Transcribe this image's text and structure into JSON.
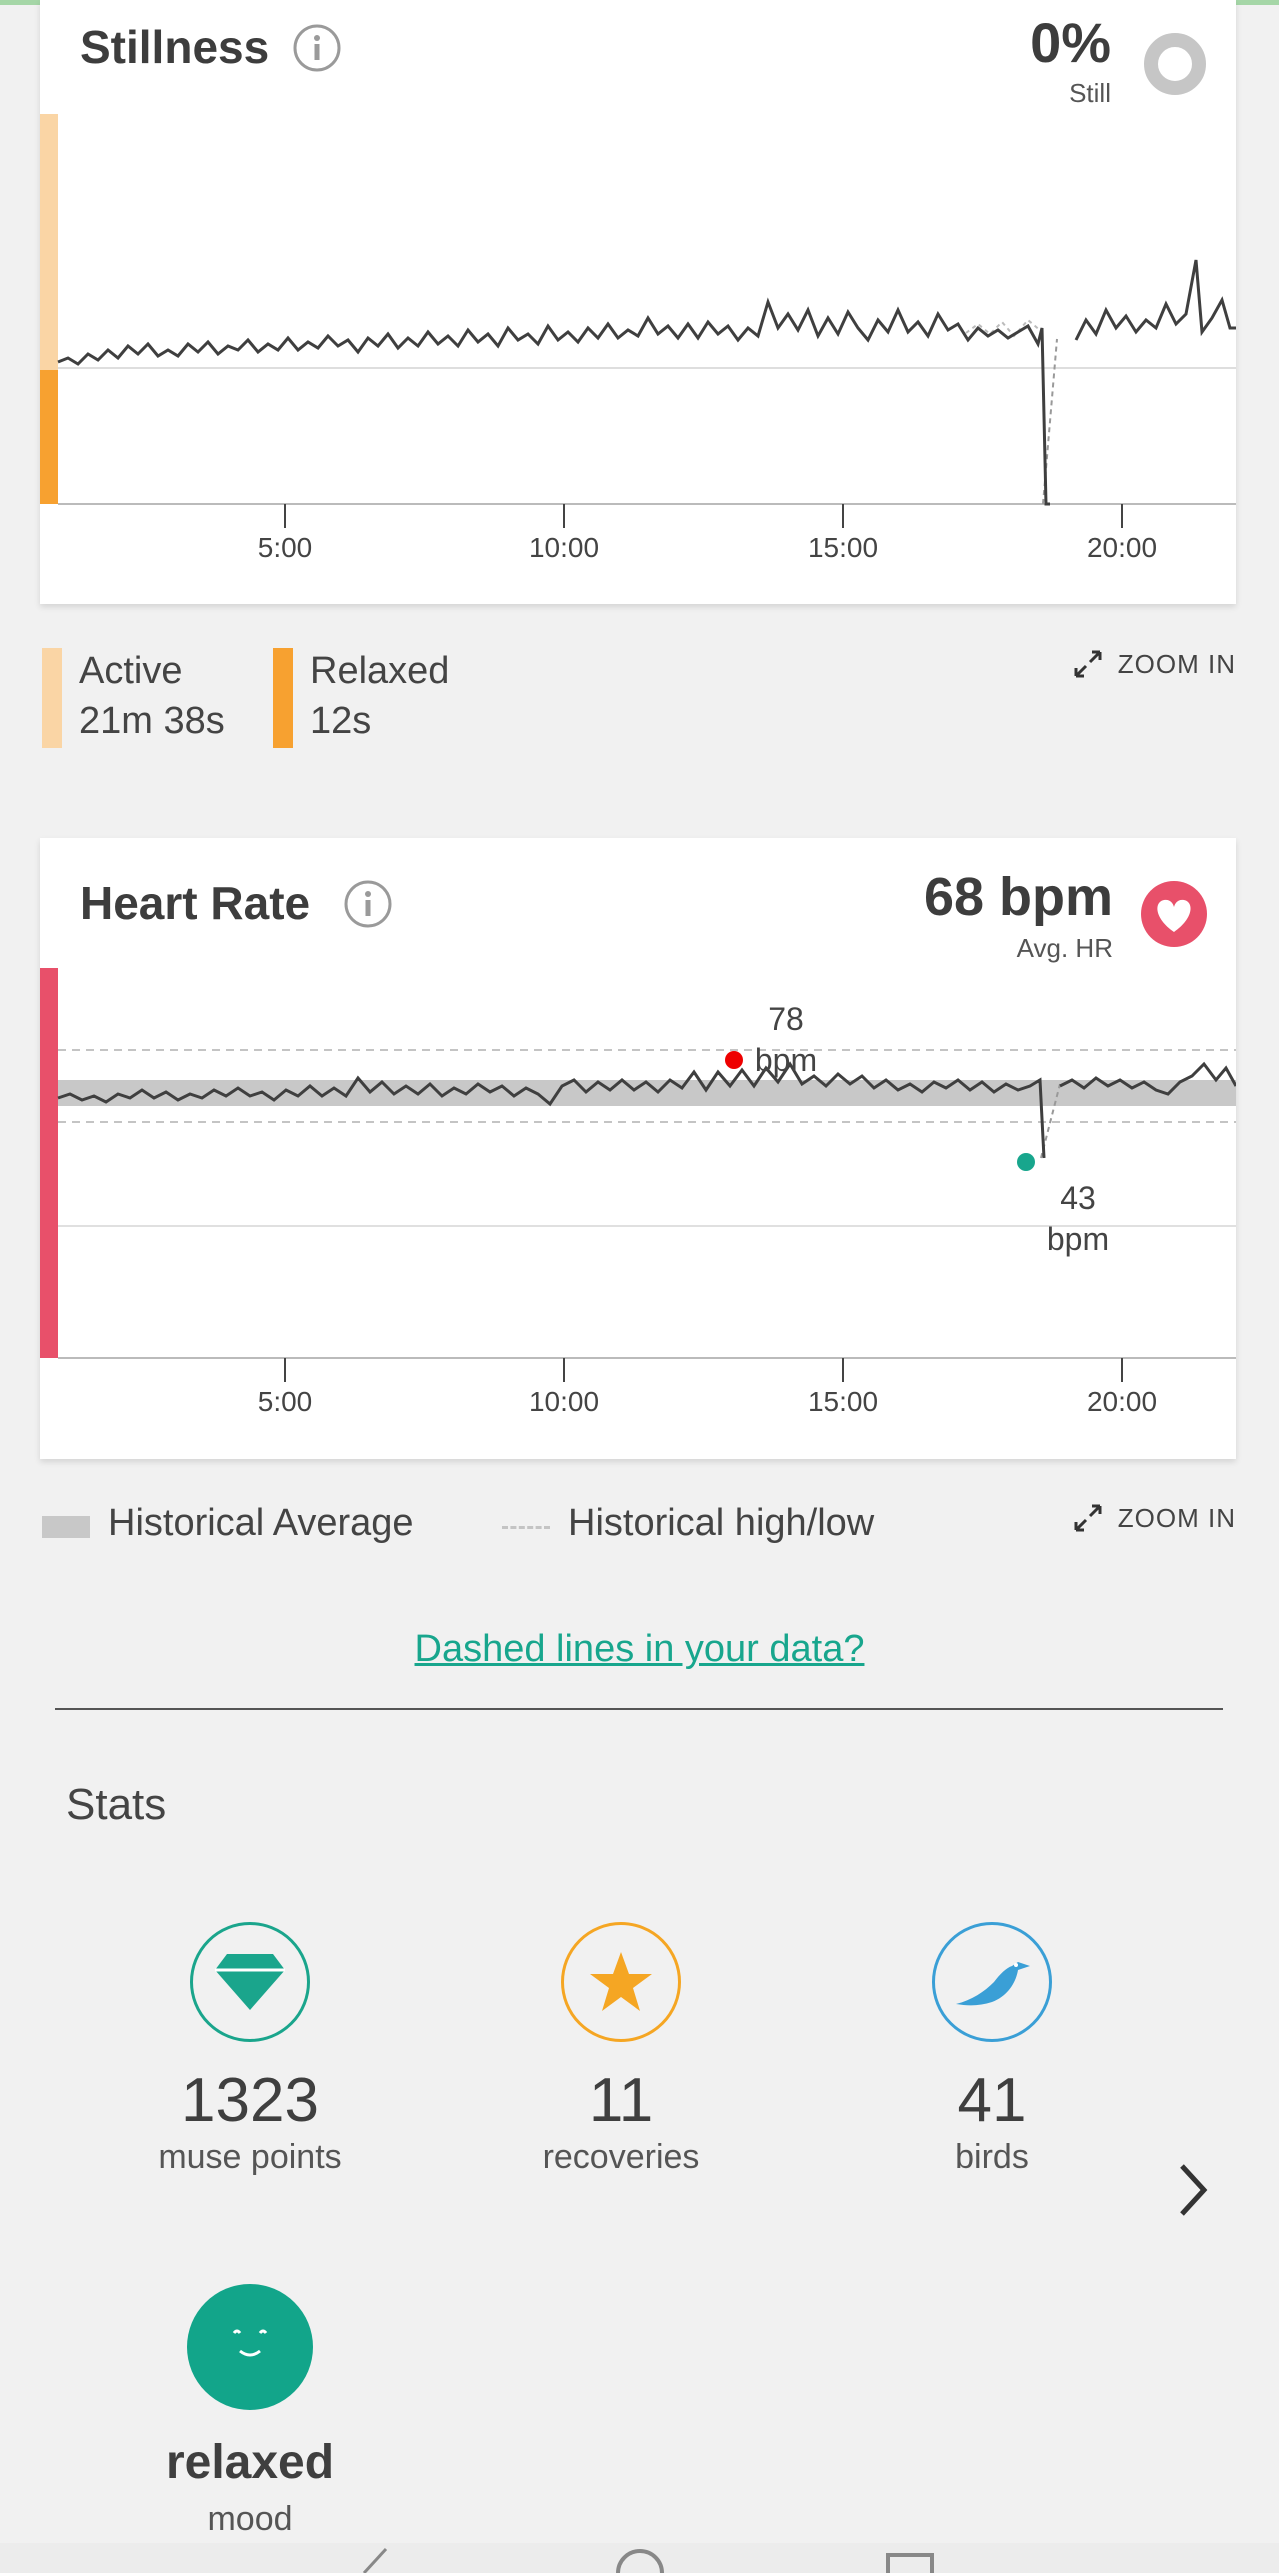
{
  "stillness": {
    "title": "Stillness",
    "percent": "0%",
    "percent_label": "Still",
    "x_ticks": [
      "5:00",
      "10:00",
      "15:00",
      "20:00"
    ],
    "legend": [
      {
        "label": "Active",
        "value": "21m 38s",
        "color": "#fad5a5"
      },
      {
        "label": "Relaxed",
        "value": "12s",
        "color": "#f7a130"
      }
    ],
    "zoom_label": "ZOOM IN"
  },
  "heart_rate": {
    "title": "Heart Rate",
    "avg_value": "68 bpm",
    "avg_label": "Avg. HR",
    "x_ticks": [
      "5:00",
      "10:00",
      "15:00",
      "20:00"
    ],
    "high": {
      "value": "78",
      "unit": "bpm"
    },
    "low": {
      "value": "43",
      "unit": "bpm"
    },
    "legend": {
      "average": "Historical Average",
      "highlow": "Historical high/low"
    },
    "zoom_label": "ZOOM IN",
    "accent": "#e8506a"
  },
  "help_link": "Dashed lines in your data?",
  "stats": {
    "title": "Stats",
    "items": [
      {
        "value": "1323",
        "label": "muse points",
        "icon": "diamond-icon",
        "color": "#1aa58c"
      },
      {
        "value": "11",
        "label": "recoveries",
        "icon": "star-icon",
        "color": "#f5a623"
      },
      {
        "value": "41",
        "label": "birds",
        "icon": "bird-icon",
        "color": "#3a9fd6"
      },
      {
        "value": "relaxed",
        "label": "mood",
        "icon": "smiley-icon",
        "color": "#12a58a"
      }
    ]
  }
}
